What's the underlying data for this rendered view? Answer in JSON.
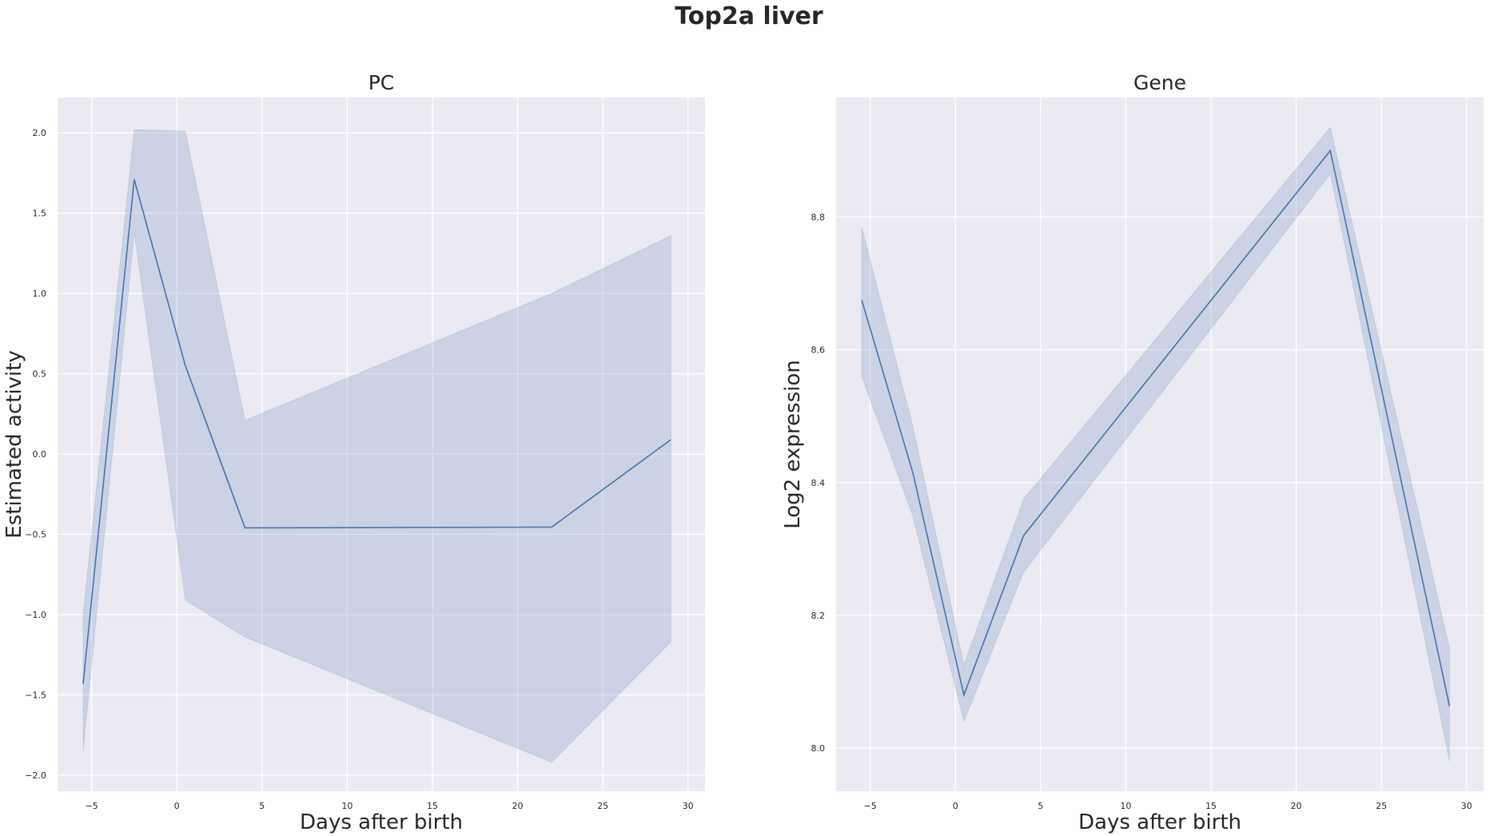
{
  "figure_title": "Top2a liver",
  "chart_data": [
    {
      "type": "line",
      "title": "PC",
      "xlabel": "Days after birth",
      "ylabel": "Estimated activity",
      "xlim": [
        -7,
        31
      ],
      "ylim": [
        -2.1,
        2.22
      ],
      "xticks": [
        -5,
        0,
        5,
        10,
        15,
        20,
        25,
        30
      ],
      "yticks": [
        -2.0,
        -1.5,
        -1.0,
        -0.5,
        0.0,
        0.5,
        1.0,
        1.5,
        2.0
      ],
      "ytick_labels": [
        "−2.0",
        "−1.5",
        "−1.0",
        "−0.5",
        "0.0",
        "0.5",
        "1.0",
        "1.5",
        "2.0"
      ],
      "xtick_labels": [
        "−5",
        "0",
        "5",
        "10",
        "15",
        "20",
        "25",
        "30"
      ],
      "grid": true,
      "series": [
        {
          "x": [
            -5.5,
            -2.5,
            0.5,
            4,
            22,
            29
          ],
          "y": [
            -1.43,
            1.71,
            0.55,
            -0.46,
            -0.455,
            0.09
          ],
          "ci_lower": [
            -1.85,
            1.38,
            -0.91,
            -1.14,
            -1.92,
            -1.17
          ],
          "ci_upper": [
            -1.0,
            2.02,
            2.01,
            0.21,
            1.0,
            1.36
          ]
        }
      ],
      "colors": {
        "line": "#4c72b0",
        "band": "#4c72b0",
        "background": "#eaeaf2",
        "grid": "#ffffff"
      }
    },
    {
      "type": "line",
      "title": "Gene",
      "xlabel": "Days after birth",
      "ylabel": "Log2 expression",
      "xlim": [
        -7,
        31
      ],
      "ylim": [
        7.935,
        8.98
      ],
      "xticks": [
        -5,
        0,
        5,
        10,
        15,
        20,
        25,
        30
      ],
      "yticks": [
        8.0,
        8.2,
        8.4,
        8.6,
        8.8
      ],
      "ytick_labels": [
        "8.0",
        "8.2",
        "8.4",
        "8.6",
        "8.8"
      ],
      "xtick_labels": [
        "−5",
        "0",
        "5",
        "10",
        "15",
        "20",
        "25",
        "30"
      ],
      "grid": true,
      "series": [
        {
          "x": [
            -5.5,
            -2.5,
            0.5,
            4,
            22,
            29
          ],
          "y": [
            8.675,
            8.415,
            8.08,
            8.32,
            8.9,
            8.063
          ],
          "ci_lower": [
            8.56,
            8.35,
            8.04,
            8.265,
            8.865,
            7.98
          ],
          "ci_upper": [
            8.785,
            8.485,
            8.125,
            8.375,
            8.935,
            8.15
          ]
        }
      ],
      "colors": {
        "line": "#4c72b0",
        "band": "#4c72b0",
        "background": "#eaeaf2",
        "grid": "#ffffff"
      }
    }
  ]
}
